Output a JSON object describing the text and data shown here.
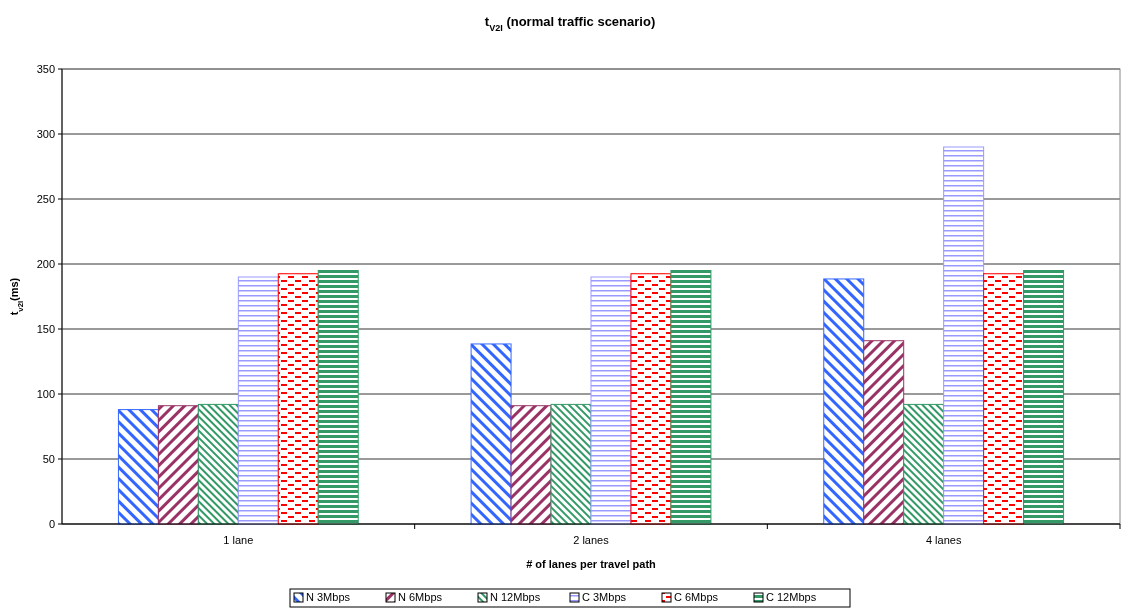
{
  "chart_data": {
    "type": "bar",
    "title": "t$_{V2I}$ (normal traffic scenario)",
    "xlabel": "# of lanes per travel path",
    "ylabel": "t$_{v2I}$(ms)",
    "categories": [
      "1 lane",
      "2 lanes",
      "4 lanes"
    ],
    "series": [
      {
        "name": "N 3Mbps",
        "color": "#3366ff",
        "values": [
          88,
          138.5,
          188.5
        ]
      },
      {
        "name": "N 6Mbps",
        "color": "#993366",
        "values": [
          91,
          91,
          141
        ]
      },
      {
        "name": "N 12Mbps",
        "color": "#339966",
        "values": [
          92,
          92,
          92
        ]
      },
      {
        "name": "C 3Mbps",
        "color": "#9999ff",
        "values": [
          190,
          190,
          290
        ]
      },
      {
        "name": "C 6Mbps",
        "color": "#ff0000",
        "values": [
          192.5,
          192.5,
          192.5
        ]
      },
      {
        "name": "C 12Mbps",
        "color": "#339966",
        "values": [
          195,
          195,
          195
        ]
      }
    ],
    "ylim": [
      0,
      350
    ],
    "yticks": [
      0,
      50,
      100,
      150,
      200,
      250,
      300,
      350
    ],
    "grid": "y",
    "legend": "bottom"
  }
}
